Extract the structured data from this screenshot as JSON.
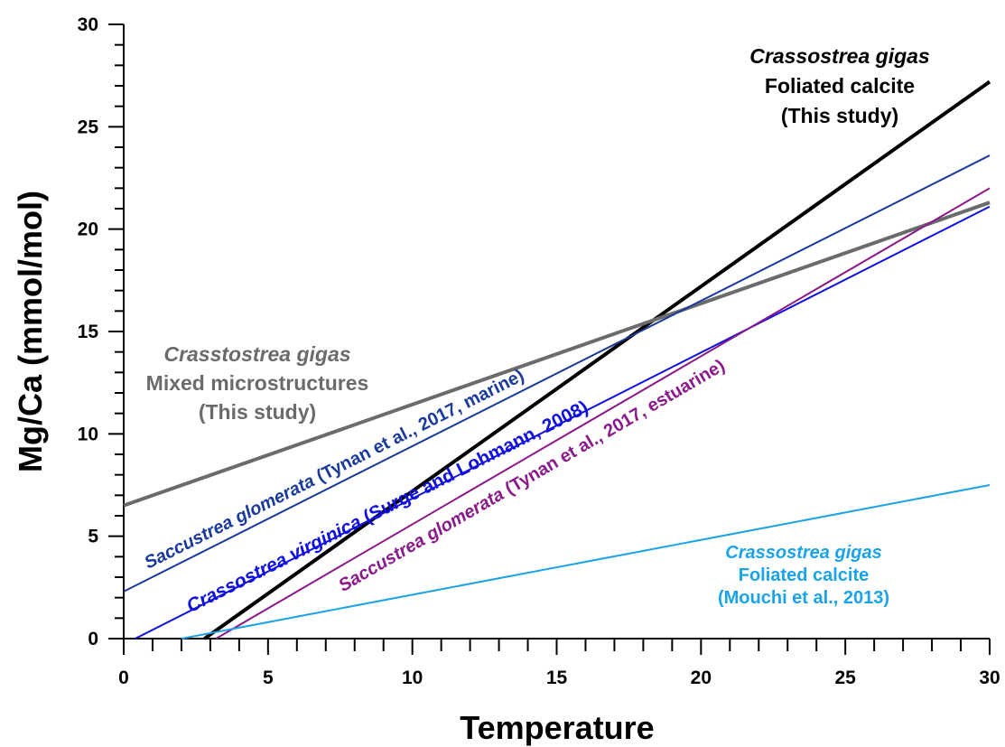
{
  "chart_data": {
    "type": "line",
    "x_label": "Temperature",
    "y_label": "Mg/Ca (mmol/mol)",
    "xlim": [
      0,
      30
    ],
    "ylim": [
      0,
      30
    ],
    "xticks": [
      0,
      5,
      10,
      15,
      20,
      25,
      30
    ],
    "yticks": [
      0,
      5,
      10,
      15,
      20,
      25,
      30
    ],
    "series": [
      {
        "color": "#000000",
        "width": 4,
        "x": [
          2.8,
          30
        ],
        "values": [
          0,
          27.2
        ]
      },
      {
        "color": "#6b6b6b",
        "width": 4,
        "x": [
          0,
          30
        ],
        "values": [
          6.5,
          21.3
        ]
      },
      {
        "color": "#1a3a9c",
        "width": 2,
        "x": [
          0,
          30
        ],
        "values": [
          2.3,
          23.6
        ]
      },
      {
        "color": "#1010e0",
        "width": 2,
        "x": [
          0.4,
          30
        ],
        "values": [
          0,
          21.1
        ]
      },
      {
        "color": "#8a1a8a",
        "width": 2,
        "x": [
          3.2,
          30
        ],
        "values": [
          0,
          22.0
        ]
      },
      {
        "color": "#1aa3e8",
        "width": 2,
        "x": [
          2,
          30
        ],
        "values": [
          0,
          7.5
        ]
      }
    ],
    "annotations": [
      {
        "color": "#000000",
        "lines": [
          [
            {
              "text": "Crassostrea gigas",
              "italic": true
            }
          ],
          [
            {
              "text": "Foliated calcite"
            }
          ],
          [
            {
              "text": "(This study)"
            }
          ]
        ]
      },
      {
        "color": "#6b6b6b",
        "lines": [
          [
            {
              "text": "Crasstostrea gigas",
              "italic": true
            }
          ],
          [
            {
              "text": "Mixed microstructures"
            }
          ],
          [
            {
              "text": "(This study)"
            }
          ]
        ]
      },
      {
        "color": "#1a3a9c",
        "lines": [
          [
            {
              "text": "Saccustrea glomerata",
              "italic": true
            },
            {
              "text": " (Tynan et al., 2017, marine)"
            }
          ]
        ]
      },
      {
        "color": "#1010e0",
        "lines": [
          [
            {
              "text": "Crassostrea virginica",
              "italic": true
            },
            {
              "text": " (Surge and Lohmann, 2008)"
            }
          ]
        ]
      },
      {
        "color": "#8a1a8a",
        "lines": [
          [
            {
              "text": "Saccustrea glomerata",
              "italic": true
            },
            {
              "text": " (Tynan et al., 2017, estuarine)"
            }
          ]
        ]
      },
      {
        "color": "#1aa3e8",
        "lines": [
          [
            {
              "text": "Crassostrea gigas",
              "italic": true
            }
          ],
          [
            {
              "text": "Foliated calcite"
            }
          ],
          [
            {
              "text": "(Mouchi et al., 2013)"
            }
          ]
        ]
      }
    ]
  }
}
